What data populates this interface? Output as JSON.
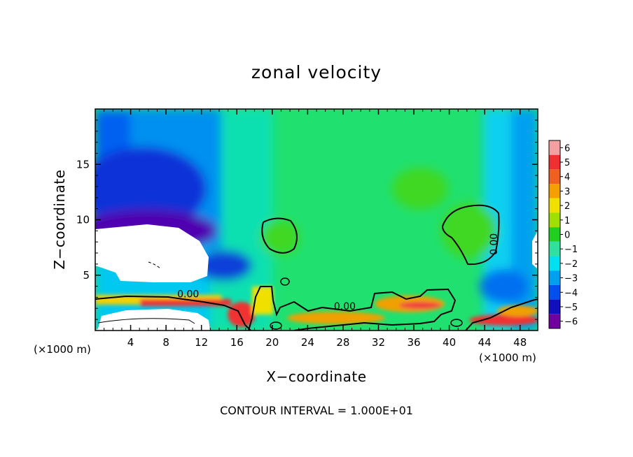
{
  "chart_data": {
    "type": "heatmap",
    "title": "zonal velocity",
    "xlabel": "X−coordinate",
    "ylabel": "Z−coordinate",
    "x_unit_label": "(×1000 m)",
    "x_unit_label_right": "(×1000 m)",
    "xlim": [
      0,
      50
    ],
    "ylim": [
      0,
      20
    ],
    "x_ticks": [
      4,
      8,
      12,
      16,
      20,
      24,
      28,
      32,
      36,
      40,
      44,
      48
    ],
    "x_tick_labels": [
      "4",
      "8",
      "12",
      "16",
      "20",
      "24",
      "28",
      "32",
      "36",
      "40",
      "44",
      "48"
    ],
    "y_ticks": [
      5,
      10,
      15
    ],
    "y_tick_labels": [
      "5",
      "10",
      "15"
    ],
    "colorbar": {
      "levels": [
        6,
        5,
        4,
        3,
        2,
        1,
        0,
        -1,
        -2,
        -3,
        -4,
        -5,
        -6
      ],
      "labels": [
        "6",
        "5",
        "4",
        "3",
        "2",
        "1",
        "0",
        "−1",
        "−2",
        "−3",
        "−4",
        "−5",
        "−6"
      ],
      "colors": [
        "#f4a0a0",
        "#f03030",
        "#f06020",
        "#f4a000",
        "#f0e000",
        "#a0e000",
        "#20d020",
        "#30e0a0",
        "#00e0f0",
        "#00a0f0",
        "#0050f0",
        "#1010c0",
        "#7000a0"
      ]
    },
    "contour_labels": [
      {
        "text": "0.00",
        "x": 10.5,
        "z": 3.0
      },
      {
        "text": "0.00",
        "x": 28.2,
        "z": 1.9
      },
      {
        "text": "0.00",
        "x": 45.4,
        "z": 7.8
      }
    ],
    "footer": "CONTOUR INTERVAL = 1.000E+01"
  }
}
